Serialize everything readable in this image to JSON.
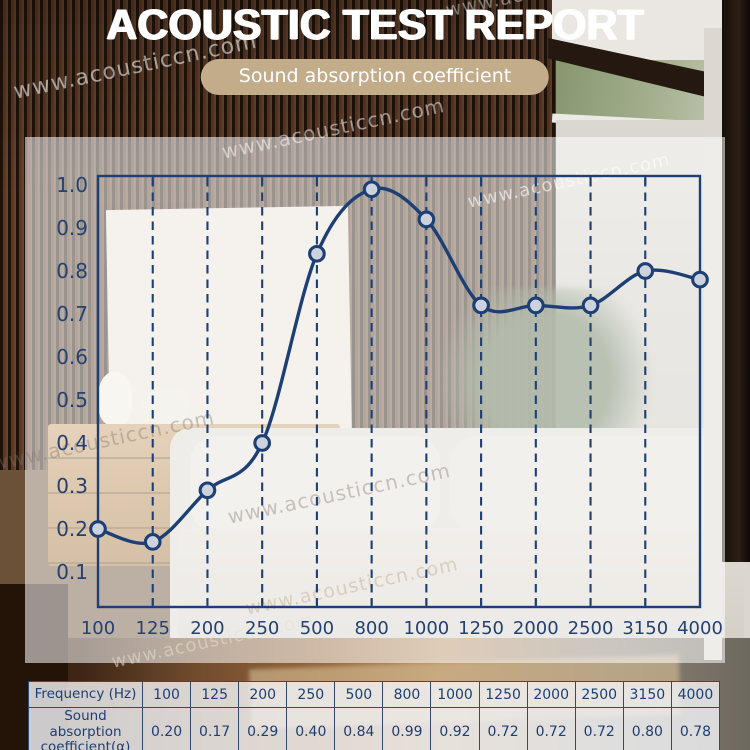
{
  "header": {
    "title": "ACOUSTIC TEST REPORT",
    "badge": "Sound absorption coefficient"
  },
  "watermark": {
    "text": "www.acousticcn.com"
  },
  "chart_data": {
    "type": "line",
    "title": "Sound absorption coefficient",
    "categories": [
      "100",
      "125",
      "200",
      "250",
      "500",
      "800",
      "1000",
      "1250",
      "2000",
      "2500",
      "3150",
      "4000"
    ],
    "values": [
      0.2,
      0.17,
      0.29,
      0.4,
      0.84,
      0.99,
      0.92,
      0.72,
      0.72,
      0.72,
      0.8,
      0.78
    ],
    "xlabel": "Frequency (Hz)",
    "ylabel": "Sound absorption coefficient (α)",
    "yticks": [
      "1.0",
      "0.9",
      "0.8",
      "0.7",
      "0.6",
      "0.5",
      "0.4",
      "0.3",
      "0.2",
      "0.1"
    ],
    "ylim": [
      0.02,
      1.02
    ],
    "grid": "vertical-dashed",
    "legend": "none",
    "line_color": "#1d3f74",
    "marker": "circle",
    "marker_fill": "#ccd3dd"
  },
  "table": {
    "rows": [
      {
        "label": "Frequency (Hz)",
        "cells": [
          "100",
          "125",
          "200",
          "250",
          "500",
          "800",
          "1000",
          "1250",
          "2000",
          "2500",
          "3150",
          "4000"
        ]
      },
      {
        "label": "Sound absorption coefficient(α)",
        "cells": [
          "0.20",
          "0.17",
          "0.29",
          "0.40",
          "0.84",
          "0.99",
          "0.92",
          "0.72",
          "0.72",
          "0.72",
          "0.80",
          "0.78"
        ]
      }
    ]
  },
  "colors": {
    "navy": "#1d3f74",
    "badge_bg": "#c3ac8a",
    "title_text": "#ffffff",
    "overlay": "rgba(255,255,255,0.55)"
  }
}
